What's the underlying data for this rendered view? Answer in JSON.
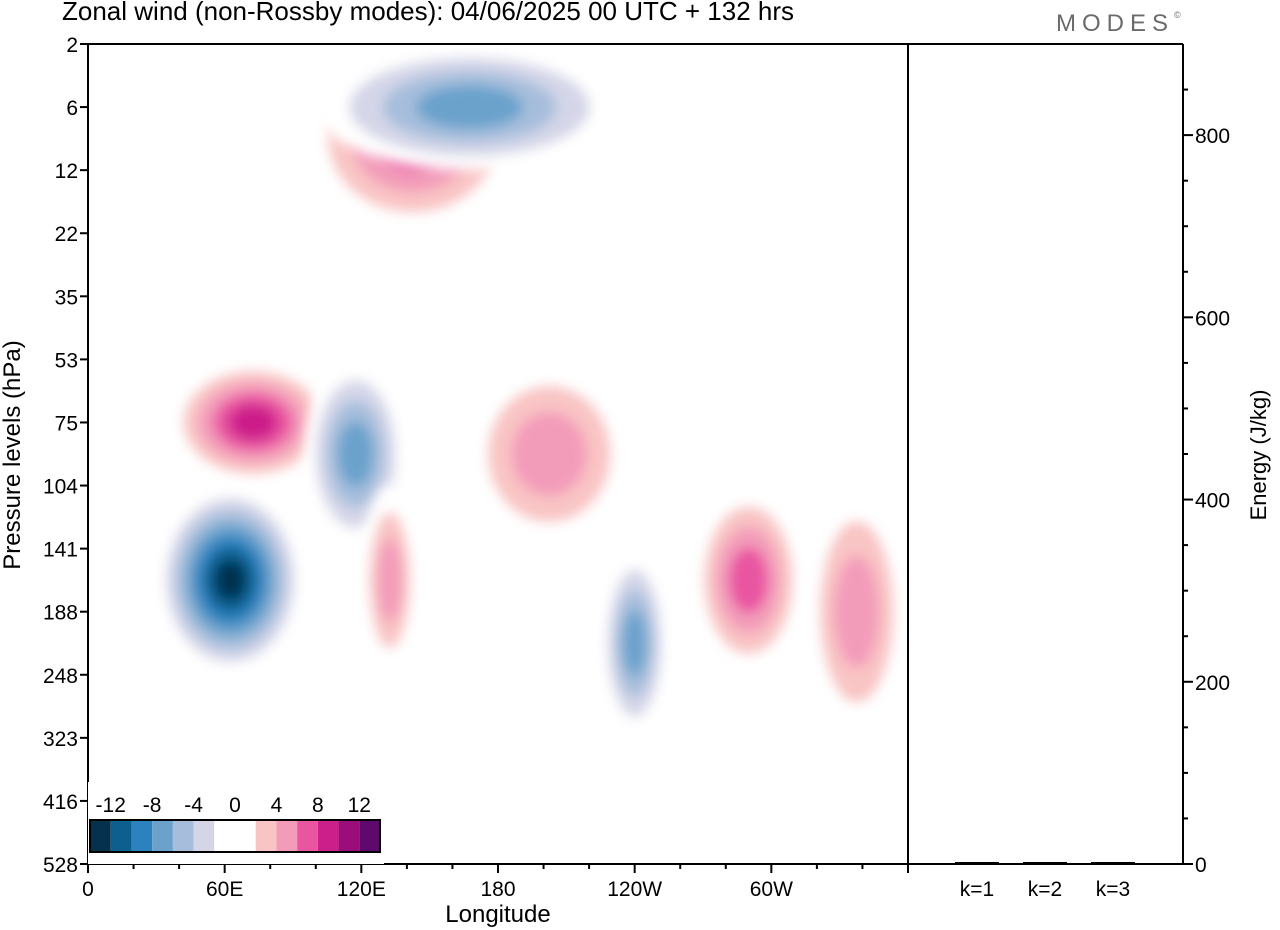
{
  "header": {
    "title": "Zonal wind (non-Rossby modes):  04/06/2025  00 UTC  + 132 hrs",
    "logo_text": "MODES",
    "logo_mark": "©"
  },
  "chart_data": [
    {
      "type": "heatmap",
      "title": "Zonal wind (non-Rossby modes):  04/06/2025  00 UTC  + 132 hrs",
      "xlabel": "Longitude",
      "ylabel": "Pressure levels (hPa)",
      "x_ticks": [
        "0",
        "60E",
        "120E",
        "180",
        "120W",
        "60W"
      ],
      "x_tick_deg": [
        0,
        60,
        120,
        180,
        240,
        300
      ],
      "xlim": [
        0,
        360
      ],
      "y_levels": [
        "2",
        "6",
        "12",
        "22",
        "35",
        "53",
        "75",
        "104",
        "141",
        "188",
        "248",
        "323",
        "416",
        "528"
      ],
      "y_scale": "categorical pressure levels, top to bottom",
      "grid": false,
      "colorbar": {
        "placement": "bottom-left",
        "tick_labels": [
          "-12",
          "-8",
          "-4",
          "0",
          "4",
          "8",
          "12"
        ],
        "levels": [
          -14,
          -12,
          -10,
          -8,
          -6,
          -4,
          -2,
          0,
          2,
          4,
          6,
          8,
          10,
          12,
          14
        ],
        "colors": [
          "#05314f",
          "#0d5f8f",
          "#2c81bf",
          "#6aa2cc",
          "#a6bedc",
          "#d4d6e8",
          "#ffffff",
          "#ffffff",
          "#f9c4c4",
          "#f39cba",
          "#e955a1",
          "#cc1f8a",
          "#9b0d79",
          "#5e0a6c"
        ]
      },
      "features": [
        {
          "sign": "negative",
          "lon": [
            30,
            95
          ],
          "level": [
            104,
            248
          ],
          "peak": -14
        },
        {
          "sign": "positive",
          "lon": [
            35,
            110
          ],
          "level": [
            53,
            104
          ],
          "peak": 10
        },
        {
          "sign": "negative",
          "lon": [
            95,
            140
          ],
          "level": [
            53,
            141
          ],
          "peak": -8
        },
        {
          "sign": "positive",
          "lon": [
            95,
            190
          ],
          "level": [
            2,
            22
          ],
          "peak": 8
        },
        {
          "sign": "negative",
          "lon": [
            100,
            235
          ],
          "level": [
            2,
            12
          ],
          "peak": -8
        },
        {
          "sign": "positive",
          "lon": [
            120,
            145
          ],
          "level": [
            104,
            248
          ],
          "peak": 6
        },
        {
          "sign": "positive",
          "lon": [
            165,
            240
          ],
          "level": [
            53,
            141
          ],
          "peak": 6
        },
        {
          "sign": "negative",
          "lon": [
            225,
            255
          ],
          "level": [
            141,
            323
          ],
          "peak": -8
        },
        {
          "sign": "positive",
          "lon": [
            265,
            315
          ],
          "level": [
            104,
            248
          ],
          "peak": 8
        },
        {
          "sign": "positive",
          "lon": [
            315,
            360
          ],
          "level": [
            104,
            323
          ],
          "peak": 6
        }
      ]
    },
    {
      "type": "bar",
      "ylabel": "Energy (J/kg)",
      "categories": [
        "k=1",
        "k=2",
        "k=3"
      ],
      "values": [
        1,
        1,
        1
      ],
      "ylim": [
        0,
        900
      ],
      "y_ticks": [
        "0",
        "200",
        "400",
        "600",
        "800"
      ],
      "y_axis_side": "right"
    }
  ]
}
